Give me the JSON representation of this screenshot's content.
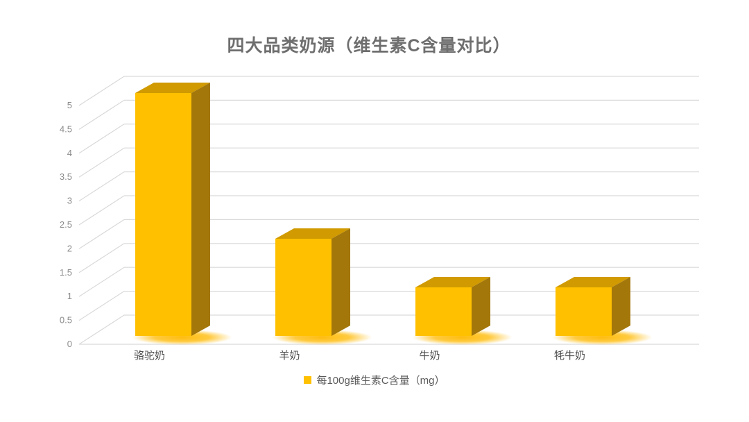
{
  "title": "四大品类奶源（维生素C含量对比）",
  "legend": {
    "marker_color": "#FFC000",
    "label": "每100g维生素C含量（mg）"
  },
  "chart_data": {
    "type": "bar",
    "style": "3d-column",
    "title": "四大品类奶源（维生素C含量对比）",
    "categories": [
      "骆驼奶",
      "羊奶",
      "牛奶",
      "牦牛奶"
    ],
    "series": [
      {
        "name": "每100g维生素C含量（mg）",
        "values": [
          5,
          2,
          1,
          1
        ]
      }
    ],
    "xlabel": "",
    "ylabel": "",
    "ylim": [
      0,
      5
    ],
    "ytick_step": 0.5,
    "y_ticks": [
      "0",
      "0.5",
      "1",
      "1.5",
      "2",
      "2.5",
      "3",
      "3.5",
      "4",
      "4.5",
      "5"
    ],
    "grid": true,
    "legend_position": "bottom",
    "colors": {
      "bar_front": "#FFC000",
      "bar_top": "#D09A00",
      "bar_side": "#A3770A",
      "glow": "#FFB900",
      "gridline": "#D9D9D9",
      "axis_text": "#8C8C8C",
      "category_text": "#4F4F4F",
      "title_text": "#6E6E6E"
    }
  }
}
